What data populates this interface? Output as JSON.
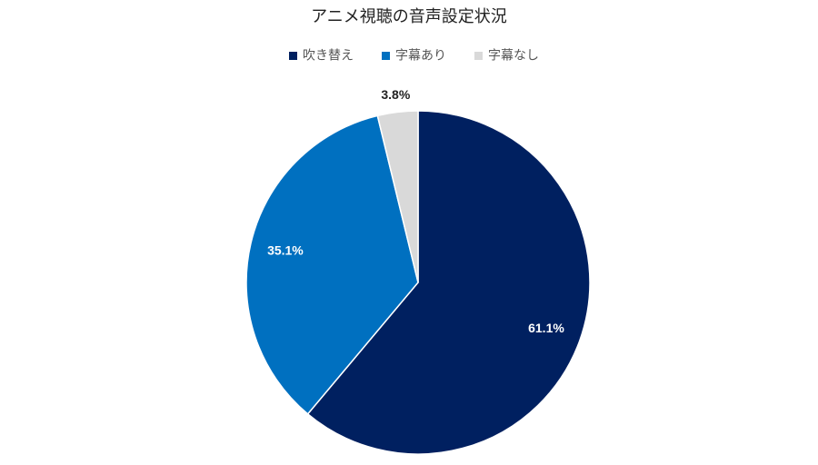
{
  "chart_data": {
    "type": "pie",
    "title": "アニメ視聴の音声設定状況",
    "categories": [
      "吹き替え",
      "字幕あり",
      "字幕なし"
    ],
    "values": [
      61.1,
      35.1,
      3.8
    ],
    "value_labels": [
      "61.1%",
      "35.1%",
      "3.8%"
    ],
    "colors": [
      "#002060",
      "#0070c0",
      "#d9d9d9"
    ]
  }
}
